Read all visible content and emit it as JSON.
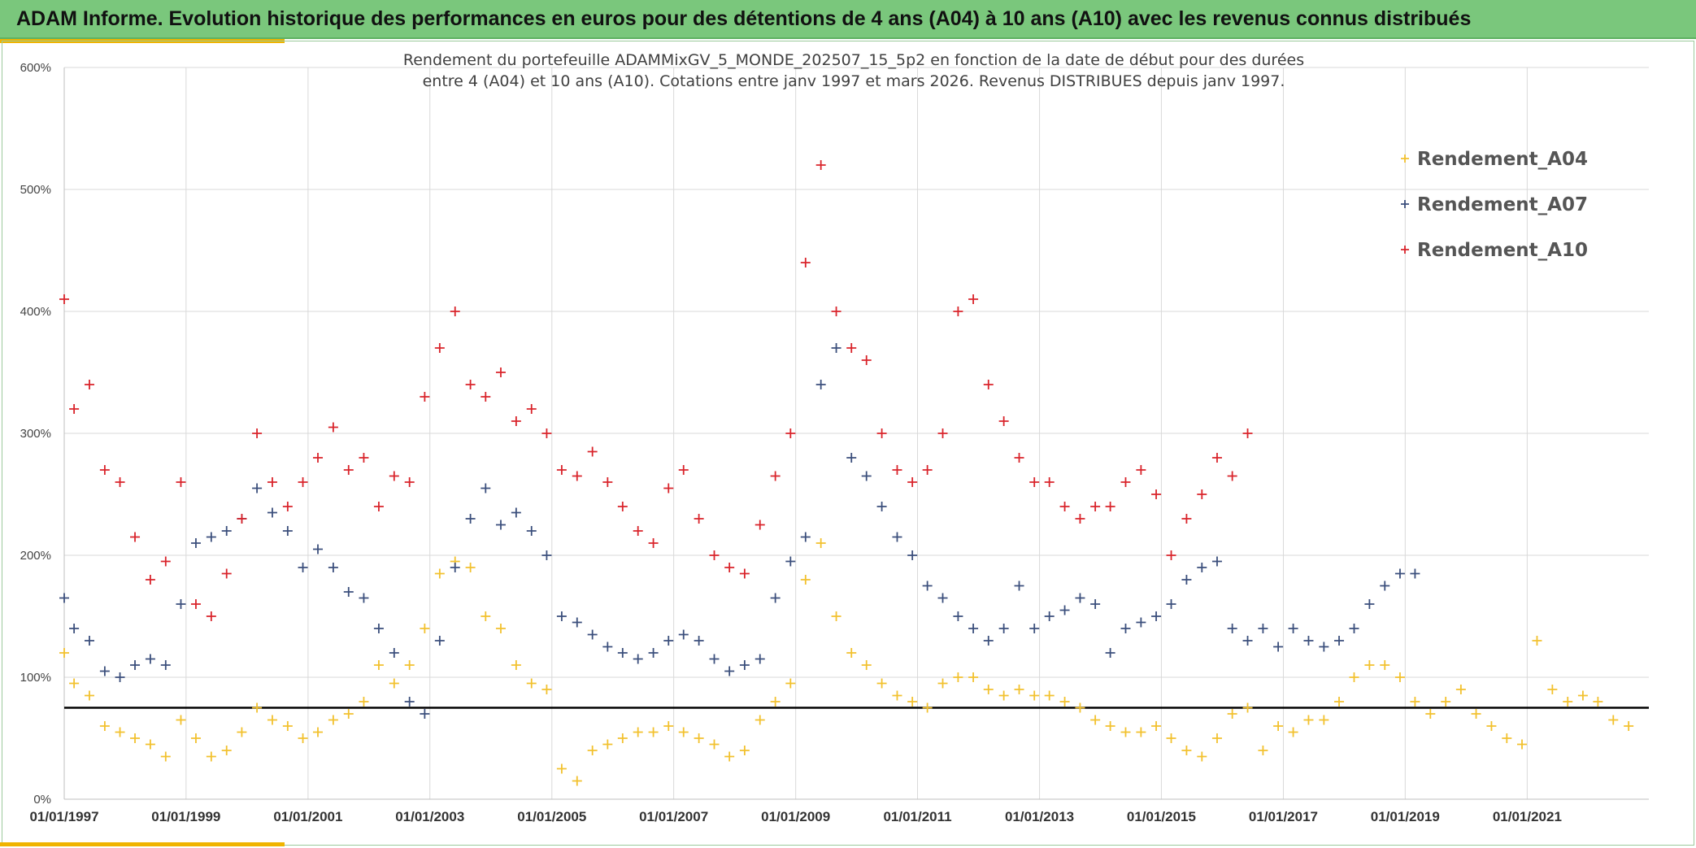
{
  "header": {
    "banner": "ADAM Informe. Evolution historique des performances en euros pour des détentions de 4 ans (A04) à 10 ans (A10) avec les revenus connus distribués"
  },
  "colors": {
    "A04": "#f2c12e",
    "A07": "#3b4f7c",
    "A10": "#d9242b",
    "reference_line": "#000000",
    "grid": "#d9d9d9",
    "banner": "#7ac77c",
    "accent": "#f0b400"
  },
  "chart_data": {
    "type": "scatter",
    "title_lines": [
      "Rendement du portefeuille ADAMMixGV_5_MONDE_202507_15_5p2  en fonction de la date de début pour des durées",
      "entre 4 (A04) et 10 ans (A10). Cotations entre janv 1997 et mars 2026. Revenus DISTRIBUES depuis janv 1997."
    ],
    "xlabel": "",
    "ylabel": "",
    "x_range": [
      "1997-01-01",
      "2022-12-31"
    ],
    "x_ticks": [
      "01/01/1997",
      "01/01/1999",
      "01/01/2001",
      "01/01/2003",
      "01/01/2005",
      "01/01/2007",
      "01/01/2009",
      "01/01/2011",
      "01/01/2013",
      "01/01/2015",
      "01/01/2017",
      "01/01/2019",
      "01/01/2021"
    ],
    "ylim": [
      0,
      600
    ],
    "y_ticks": [
      0,
      100,
      200,
      300,
      400,
      500,
      600
    ],
    "y_tick_labels": [
      "0%",
      "100%",
      "200%",
      "300%",
      "400%",
      "500%",
      "600%"
    ],
    "grid": true,
    "legend_position": "top-right",
    "marker": "+",
    "reference_line_value": 75,
    "series": [
      {
        "name": "Rendement_A04",
        "color": "#f2c12e",
        "x": [
          "1997-01-01",
          "1997-03-01",
          "1997-06-01",
          "1997-09-01",
          "1997-12-01",
          "1998-03-01",
          "1998-06-01",
          "1998-09-01",
          "1998-12-01",
          "1999-03-01",
          "1999-06-01",
          "1999-09-01",
          "1999-12-01",
          "2000-03-01",
          "2000-06-01",
          "2000-09-01",
          "2000-12-01",
          "2001-03-01",
          "2001-06-01",
          "2001-09-01",
          "2001-12-01",
          "2002-03-01",
          "2002-06-01",
          "2002-09-01",
          "2002-12-01",
          "2003-03-01",
          "2003-06-01",
          "2003-09-01",
          "2003-12-01",
          "2004-03-01",
          "2004-06-01",
          "2004-09-01",
          "2004-12-01",
          "2005-03-01",
          "2005-06-01",
          "2005-09-01",
          "2005-12-01",
          "2006-03-01",
          "2006-06-01",
          "2006-09-01",
          "2006-12-01",
          "2007-03-01",
          "2007-06-01",
          "2007-09-01",
          "2007-12-01",
          "2008-03-01",
          "2008-06-01",
          "2008-09-01",
          "2008-12-01",
          "2009-03-01",
          "2009-06-01",
          "2009-09-01",
          "2009-12-01",
          "2010-03-01",
          "2010-06-01",
          "2010-09-01",
          "2010-12-01",
          "2011-03-01",
          "2011-06-01",
          "2011-09-01",
          "2011-12-01",
          "2012-03-01",
          "2012-06-01",
          "2012-09-01",
          "2012-12-01",
          "2013-03-01",
          "2013-06-01",
          "2013-09-01",
          "2013-12-01",
          "2014-03-01",
          "2014-06-01",
          "2014-09-01",
          "2014-12-01",
          "2015-03-01",
          "2015-06-01",
          "2015-09-01",
          "2015-12-01",
          "2016-03-01",
          "2016-06-01",
          "2016-09-01",
          "2016-12-01",
          "2017-03-01",
          "2017-06-01",
          "2017-09-01",
          "2017-12-01",
          "2018-03-01",
          "2018-06-01",
          "2018-09-01",
          "2018-12-01",
          "2019-03-01",
          "2019-06-01",
          "2019-09-01",
          "2019-12-01",
          "2020-03-01",
          "2020-06-01",
          "2020-09-01",
          "2020-12-01",
          "2021-03-01",
          "2021-06-01",
          "2021-09-01",
          "2021-12-01",
          "2022-03-01",
          "2022-06-01",
          "2022-09-01"
        ],
        "y": [
          120,
          95,
          85,
          60,
          55,
          50,
          45,
          35,
          65,
          50,
          35,
          40,
          55,
          75,
          65,
          60,
          50,
          55,
          65,
          70,
          80,
          110,
          95,
          110,
          140,
          185,
          195,
          190,
          150,
          140,
          110,
          95,
          90,
          25,
          15,
          40,
          45,
          50,
          55,
          55,
          60,
          55,
          50,
          45,
          35,
          40,
          65,
          80,
          95,
          180,
          210,
          150,
          120,
          110,
          95,
          85,
          80,
          75,
          95,
          100,
          100,
          90,
          85,
          90,
          85,
          85,
          80,
          75,
          65,
          60,
          55,
          55,
          60,
          50,
          40,
          35,
          50,
          70,
          75,
          40,
          60,
          55,
          65,
          65,
          80,
          100,
          110,
          110,
          100,
          80,
          70,
          80,
          90,
          70,
          60,
          50,
          45,
          130,
          90,
          80,
          85,
          80,
          65,
          60
        ]
      },
      {
        "name": "Rendement_A07",
        "color": "#3b4f7c",
        "x": [
          "1997-01-01",
          "1997-03-01",
          "1997-06-01",
          "1997-09-01",
          "1997-12-01",
          "1998-03-01",
          "1998-06-01",
          "1998-09-01",
          "1998-12-01",
          "1999-03-01",
          "1999-06-01",
          "1999-09-01",
          "1999-12-01",
          "2000-03-01",
          "2000-06-01",
          "2000-09-01",
          "2000-12-01",
          "2001-03-01",
          "2001-06-01",
          "2001-09-01",
          "2001-12-01",
          "2002-03-01",
          "2002-06-01",
          "2002-09-01",
          "2002-12-01",
          "2003-03-01",
          "2003-06-01",
          "2003-09-01",
          "2003-12-01",
          "2004-03-01",
          "2004-06-01",
          "2004-09-01",
          "2004-12-01",
          "2005-03-01",
          "2005-06-01",
          "2005-09-01",
          "2005-12-01",
          "2006-03-01",
          "2006-06-01",
          "2006-09-01",
          "2006-12-01",
          "2007-03-01",
          "2007-06-01",
          "2007-09-01",
          "2007-12-01",
          "2008-03-01",
          "2008-06-01",
          "2008-09-01",
          "2008-12-01",
          "2009-03-01",
          "2009-06-01",
          "2009-09-01",
          "2009-12-01",
          "2010-03-01",
          "2010-06-01",
          "2010-09-01",
          "2010-12-01",
          "2011-03-01",
          "2011-06-01",
          "2011-09-01",
          "2011-12-01",
          "2012-03-01",
          "2012-06-01",
          "2012-09-01",
          "2012-12-01",
          "2013-03-01",
          "2013-06-01",
          "2013-09-01",
          "2013-12-01",
          "2014-03-01",
          "2014-06-01",
          "2014-09-01",
          "2014-12-01",
          "2015-03-01",
          "2015-06-01",
          "2015-09-01",
          "2015-12-01",
          "2016-03-01",
          "2016-06-01",
          "2016-09-01",
          "2016-12-01",
          "2017-03-01",
          "2017-06-01",
          "2017-09-01",
          "2017-12-01",
          "2018-03-01",
          "2018-06-01",
          "2018-09-01",
          "2018-12-01",
          "2019-03-01"
        ],
        "y": [
          165,
          140,
          130,
          105,
          100,
          110,
          115,
          110,
          160,
          210,
          215,
          220,
          230,
          255,
          235,
          220,
          190,
          205,
          190,
          170,
          165,
          140,
          120,
          80,
          70,
          130,
          190,
          230,
          255,
          225,
          235,
          220,
          200,
          150,
          145,
          135,
          125,
          120,
          115,
          120,
          130,
          135,
          130,
          115,
          105,
          110,
          115,
          165,
          195,
          215,
          340,
          370,
          280,
          265,
          240,
          215,
          200,
          175,
          165,
          150,
          140,
          130,
          140,
          175,
          140,
          150,
          155,
          165,
          160,
          120,
          140,
          145,
          150,
          160,
          180,
          190,
          195,
          140,
          130,
          140,
          125,
          140,
          130,
          125,
          130,
          140,
          160,
          175,
          185,
          185
        ]
      },
      {
        "name": "Rendement_A10",
        "color": "#d9242b",
        "x": [
          "1997-01-01",
          "1997-03-01",
          "1997-06-01",
          "1997-09-01",
          "1997-12-01",
          "1998-03-01",
          "1998-06-01",
          "1998-09-01",
          "1998-12-01",
          "1999-03-01",
          "1999-06-01",
          "1999-09-01",
          "1999-12-01",
          "2000-03-01",
          "2000-06-01",
          "2000-09-01",
          "2000-12-01",
          "2001-03-01",
          "2001-06-01",
          "2001-09-01",
          "2001-12-01",
          "2002-03-01",
          "2002-06-01",
          "2002-09-01",
          "2002-12-01",
          "2003-03-01",
          "2003-06-01",
          "2003-09-01",
          "2003-12-01",
          "2004-03-01",
          "2004-06-01",
          "2004-09-01",
          "2004-12-01",
          "2005-03-01",
          "2005-06-01",
          "2005-09-01",
          "2005-12-01",
          "2006-03-01",
          "2006-06-01",
          "2006-09-01",
          "2006-12-01",
          "2007-03-01",
          "2007-06-01",
          "2007-09-01",
          "2007-12-01",
          "2008-03-01",
          "2008-06-01",
          "2008-09-01",
          "2008-12-01",
          "2009-03-01",
          "2009-06-01",
          "2009-09-01",
          "2009-12-01",
          "2010-03-01",
          "2010-06-01",
          "2010-09-01",
          "2010-12-01",
          "2011-03-01",
          "2011-06-01",
          "2011-09-01",
          "2011-12-01",
          "2012-03-01",
          "2012-06-01",
          "2012-09-01",
          "2012-12-01",
          "2013-03-01",
          "2013-06-01",
          "2013-09-01",
          "2013-12-01",
          "2014-03-01",
          "2014-06-01",
          "2014-09-01",
          "2014-12-01",
          "2015-03-01",
          "2015-06-01",
          "2015-09-01",
          "2015-12-01",
          "2016-03-01",
          "2016-06-01"
        ],
        "y": [
          410,
          320,
          340,
          270,
          260,
          215,
          180,
          195,
          260,
          160,
          150,
          185,
          230,
          300,
          260,
          240,
          260,
          280,
          305,
          270,
          280,
          240,
          265,
          260,
          330,
          370,
          400,
          340,
          330,
          350,
          310,
          320,
          300,
          270,
          265,
          285,
          260,
          240,
          220,
          210,
          255,
          270,
          230,
          200,
          190,
          185,
          225,
          265,
          300,
          440,
          520,
          400,
          370,
          360,
          300,
          270,
          260,
          270,
          300,
          400,
          410,
          340,
          310,
          280,
          260,
          260,
          240,
          230,
          240,
          240,
          260,
          270,
          250,
          200,
          230,
          250,
          280,
          265,
          300
        ]
      }
    ]
  }
}
